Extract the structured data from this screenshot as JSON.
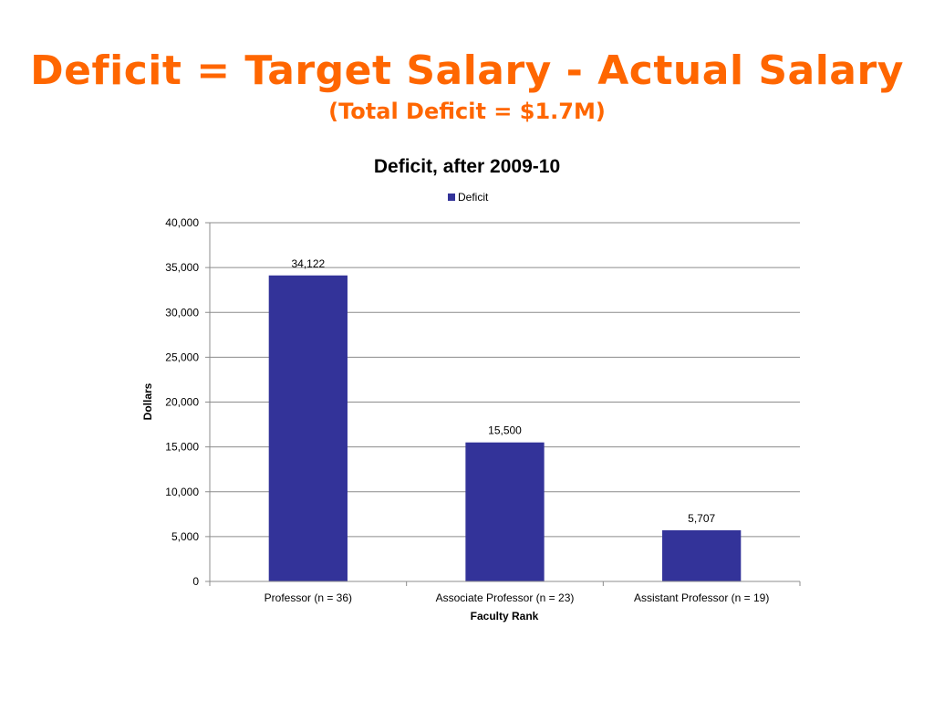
{
  "slide": {
    "title": "Deficit = Target Salary - Actual Salary",
    "subtitle": "(Total Deficit = $1.7M)"
  },
  "chart_data": {
    "type": "bar",
    "title": "Deficit, after 2009-10",
    "xlabel": "Faculty Rank",
    "ylabel": "Dollars",
    "categories": [
      "Professor (n = 36)",
      "Associate Professor (n = 23)",
      "Assistant Professor (n = 19)"
    ],
    "series": [
      {
        "name": "Deficit",
        "values": [
          34122,
          15500,
          5707
        ],
        "color": "#333399"
      }
    ],
    "data_labels": [
      "34,122",
      "15,500",
      "5,707"
    ],
    "ylim": [
      0,
      40000
    ],
    "yticks": [
      0,
      5000,
      10000,
      15000,
      20000,
      25000,
      30000,
      35000,
      40000
    ],
    "ytick_labels": [
      "0",
      "5,000",
      "10,000",
      "15,000",
      "20,000",
      "25,000",
      "30,000",
      "35,000",
      "40,000"
    ],
    "grid": true,
    "legend": "top-center"
  }
}
